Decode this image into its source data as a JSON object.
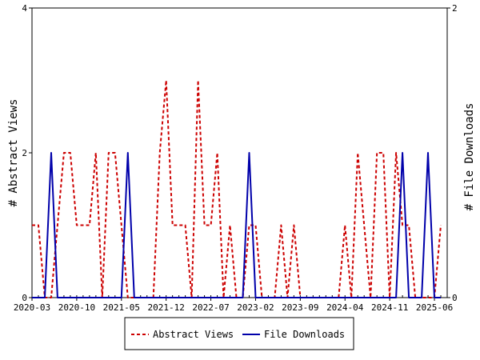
{
  "chart_data": {
    "type": "line",
    "ylabel_left": "# Abstract Views",
    "ylabel_right": "# File Downloads",
    "ylim_left": [
      0,
      4
    ],
    "ylim_right": [
      0,
      2
    ],
    "yticks_left": [
      "0",
      "2",
      "4"
    ],
    "yticks_right": [
      "0",
      "2"
    ],
    "xlim": [
      "2020-03",
      "2025-08"
    ],
    "xtick_labels": [
      "2020-03",
      "2020-10",
      "2021-05",
      "2021-12",
      "2022-07",
      "2023-02",
      "2023-09",
      "2024-04",
      "2024-11",
      "2025-06"
    ],
    "legend_position": "bottom-center",
    "series": [
      {
        "name": "Abstract Views",
        "axis": "left",
        "color": "#cc0000",
        "style": "dashed",
        "x": [
          "2020-03",
          "2020-04",
          "2020-05",
          "2020-06",
          "2020-07",
          "2020-08",
          "2020-09",
          "2020-10",
          "2020-11",
          "2020-12",
          "2021-01",
          "2021-02",
          "2021-03",
          "2021-04",
          "2021-05",
          "2021-06",
          "2021-07",
          "2021-08",
          "2021-09",
          "2021-10",
          "2021-11",
          "2021-12",
          "2022-01",
          "2022-02",
          "2022-03",
          "2022-04",
          "2022-05",
          "2022-06",
          "2022-07",
          "2022-08",
          "2022-09",
          "2022-10",
          "2022-11",
          "2022-12",
          "2023-01",
          "2023-02",
          "2023-03",
          "2023-04",
          "2023-05",
          "2023-06",
          "2023-07",
          "2023-08",
          "2023-09",
          "2023-10",
          "2023-11",
          "2023-12",
          "2024-01",
          "2024-02",
          "2024-03",
          "2024-04",
          "2024-05",
          "2024-06",
          "2024-07",
          "2024-08",
          "2024-09",
          "2024-10",
          "2024-11",
          "2024-12",
          "2025-01",
          "2025-02",
          "2025-03",
          "2025-04",
          "2025-05",
          "2025-06",
          "2025-07"
        ],
        "values": [
          1,
          1,
          0,
          0,
          1,
          2,
          2,
          1,
          1,
          1,
          2,
          0,
          2,
          2,
          1,
          0,
          0,
          0,
          0,
          0,
          2,
          3,
          1,
          1,
          1,
          0,
          3,
          1,
          1,
          2,
          0,
          1,
          0,
          0,
          1,
          1,
          0,
          0,
          0,
          1,
          0,
          1,
          0,
          0,
          0,
          0,
          0,
          0,
          0,
          1,
          0,
          2,
          1,
          0,
          2,
          2,
          0,
          2,
          1,
          1,
          0,
          0,
          0,
          0,
          1
        ]
      },
      {
        "name": "File Downloads",
        "axis": "right",
        "color": "#0000aa",
        "style": "solid",
        "x": [
          "2020-03",
          "2020-04",
          "2020-05",
          "2020-06",
          "2020-07",
          "2020-08",
          "2020-09",
          "2020-10",
          "2020-11",
          "2020-12",
          "2021-01",
          "2021-02",
          "2021-03",
          "2021-04",
          "2021-05",
          "2021-06",
          "2021-07",
          "2021-08",
          "2021-09",
          "2021-10",
          "2021-11",
          "2021-12",
          "2022-01",
          "2022-02",
          "2022-03",
          "2022-04",
          "2022-05",
          "2022-06",
          "2022-07",
          "2022-08",
          "2022-09",
          "2022-10",
          "2022-11",
          "2022-12",
          "2023-01",
          "2023-02",
          "2023-03",
          "2023-04",
          "2023-05",
          "2023-06",
          "2023-07",
          "2023-08",
          "2023-09",
          "2023-10",
          "2023-11",
          "2023-12",
          "2024-01",
          "2024-02",
          "2024-03",
          "2024-04",
          "2024-05",
          "2024-06",
          "2024-07",
          "2024-08",
          "2024-09",
          "2024-10",
          "2024-11",
          "2024-12",
          "2025-01",
          "2025-02",
          "2025-03",
          "2025-04",
          "2025-05",
          "2025-06",
          "2025-07"
        ],
        "values": [
          0,
          0,
          0,
          1,
          0,
          0,
          0,
          0,
          0,
          0,
          0,
          0,
          0,
          0,
          0,
          1,
          0,
          0,
          0,
          0,
          0,
          0,
          0,
          0,
          0,
          0,
          0,
          0,
          0,
          0,
          0,
          0,
          0,
          0,
          1,
          0,
          0,
          0,
          0,
          0,
          0,
          0,
          0,
          0,
          0,
          0,
          0,
          0,
          0,
          0,
          0,
          0,
          0,
          0,
          0,
          0,
          0,
          0,
          1,
          0,
          0,
          0,
          1,
          0,
          0
        ]
      }
    ]
  }
}
